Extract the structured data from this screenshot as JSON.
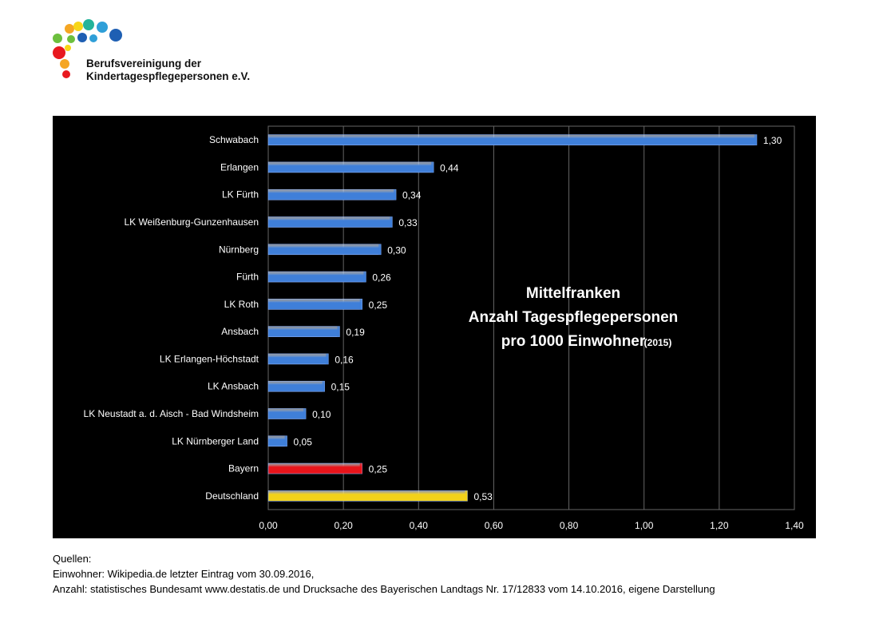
{
  "logo": {
    "line1": "Berufsvereinigung der",
    "line2": "Kindertagespflegepersonen e.V.",
    "dot_colors": [
      "#e8191f",
      "#f5a623",
      "#f7d618",
      "#6cbf3d",
      "#2f9fd8",
      "#1e5fb3",
      "#23b39a",
      "#e8191f"
    ]
  },
  "chart_data": {
    "type": "bar",
    "orientation": "horizontal",
    "title_lines": [
      "Mittelfranken",
      "Anzahl Tagespflegepersonen",
      "pro 1000 Einwohner"
    ],
    "title_suffix": "(2015)",
    "categories": [
      "Schwabach",
      "Erlangen",
      "LK Fürth",
      "LK Weißenburg-Gunzenhausen",
      "Nürnberg",
      "Fürth",
      "LK Roth",
      "Ansbach",
      "LK Erlangen-Höchstadt",
      "LK Ansbach",
      "LK Neustadt a. d. Aisch - Bad Windsheim",
      "LK Nürnberger Land",
      "Bayern",
      "Deutschland"
    ],
    "values": [
      1.3,
      0.44,
      0.34,
      0.33,
      0.3,
      0.26,
      0.25,
      0.19,
      0.16,
      0.15,
      0.1,
      0.05,
      0.25,
      0.53
    ],
    "value_labels": [
      "1,30",
      "0,44",
      "0,34",
      "0,33",
      "0,30",
      "0,26",
      "0,25",
      "0,19",
      "0,16",
      "0,15",
      "0,10",
      "0,05",
      "0,25",
      "0,53"
    ],
    "bar_colors": [
      "#3f7fd9",
      "#3f7fd9",
      "#3f7fd9",
      "#3f7fd9",
      "#3f7fd9",
      "#3f7fd9",
      "#3f7fd9",
      "#3f7fd9",
      "#3f7fd9",
      "#3f7fd9",
      "#3f7fd9",
      "#3f7fd9",
      "#e8141a",
      "#f2d21a"
    ],
    "xlim": [
      0,
      1.4
    ],
    "x_ticks": [
      0,
      0.2,
      0.4,
      0.6,
      0.8,
      1.0,
      1.2,
      1.4
    ],
    "x_tick_labels": [
      "0,00",
      "0,20",
      "0,40",
      "0,60",
      "0,80",
      "1,00",
      "1,20",
      "1,40"
    ],
    "grid": "vertical",
    "background": "#000000",
    "text_color": "#ffffff"
  },
  "sources": {
    "heading": "Quellen:",
    "line1": "Einwohner: Wikipedia.de letzter Eintrag vom 30.09.2016,",
    "line2": "Anzahl: statistisches Bundesamt www.destatis.de und Drucksache des Bayerischen Landtags Nr. 17/12833 vom 14.10.2016, eigene Darstellung"
  }
}
